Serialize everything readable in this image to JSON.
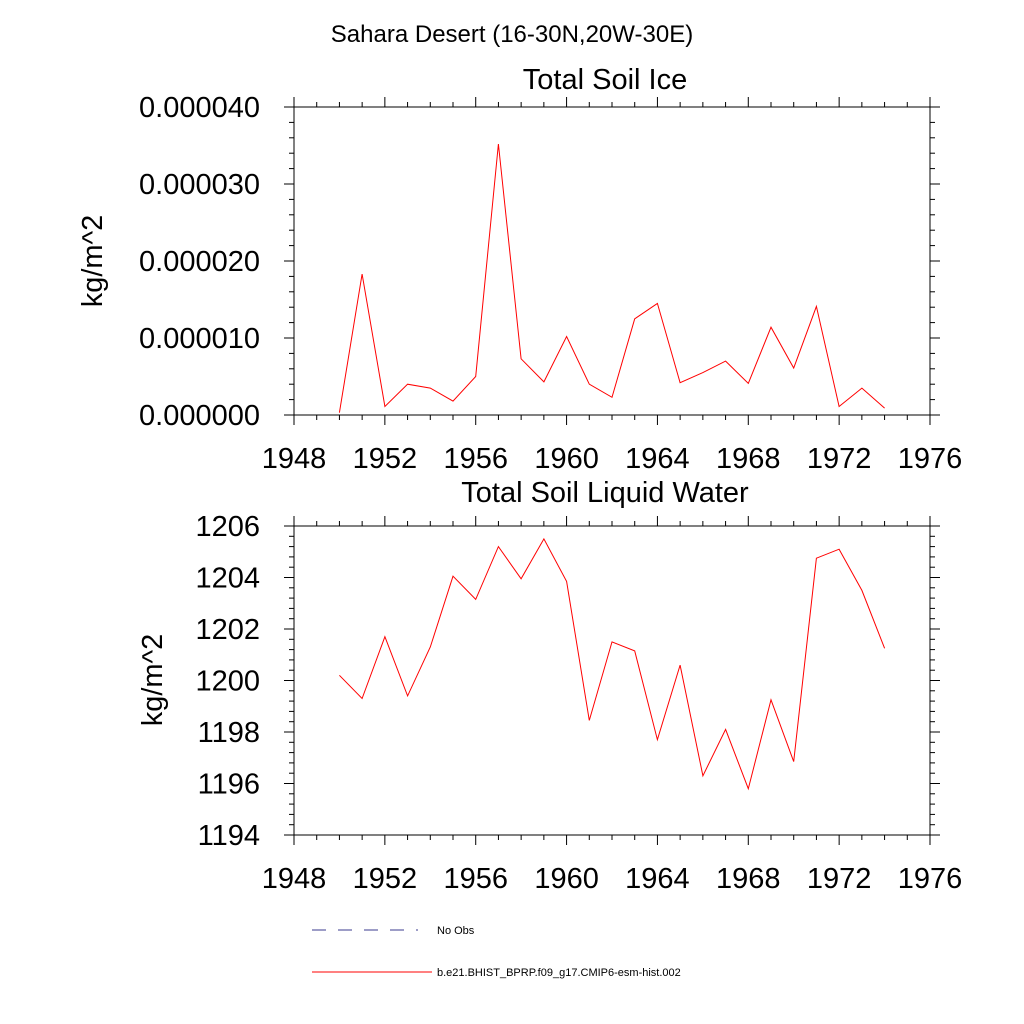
{
  "figure": {
    "suptitle": "Sahara Desert (16-30N,20W-30E)"
  },
  "colors": {
    "model_line": "#ff0000",
    "obs_line": "#3b3b8f",
    "axes": "#000000"
  },
  "legend": {
    "placement": "bottom-left",
    "entries": [
      {
        "label": "No Obs",
        "style": "dashed"
      },
      {
        "label": "b.e21.BHIST_BPRP.f09_g17.CMIP6-esm-hist.002",
        "style": "solid"
      }
    ]
  },
  "chart_data": [
    {
      "type": "line",
      "title": "Total Soil Ice",
      "xlabel": "",
      "ylabel": "kg/m^2",
      "xlim": [
        1948,
        1976
      ],
      "ylim": [
        0,
        4e-05
      ],
      "grid": false,
      "x_ticks": [
        1948,
        1952,
        1956,
        1960,
        1964,
        1968,
        1972,
        1976
      ],
      "x_tick_labels": [
        "1948",
        "1952",
        "1956",
        "1960",
        "1964",
        "1968",
        "1972",
        "1976"
      ],
      "y_ticks": [
        0,
        1e-05,
        2e-05,
        3e-05,
        4e-05
      ],
      "y_tick_labels": [
        "0.000000",
        "0.000010",
        "0.000020",
        "0.000030",
        "0.000040"
      ],
      "series": [
        {
          "name": "b.e21.BHIST_BPRP.f09_g17.CMIP6-esm-hist.002",
          "x": [
            1950,
            1951,
            1952,
            1953,
            1954,
            1955,
            1956,
            1957,
            1958,
            1959,
            1960,
            1961,
            1962,
            1963,
            1964,
            1965,
            1966,
            1967,
            1968,
            1969,
            1970,
            1971,
            1972,
            1973,
            1974
          ],
          "values": [
            3e-07,
            1.83e-05,
            1.1e-06,
            4e-06,
            3.5e-06,
            1.8e-06,
            5e-06,
            3.52e-05,
            7.3e-06,
            4.3e-06,
            1.02e-05,
            4e-06,
            2.3e-06,
            1.25e-05,
            1.45e-05,
            4.2e-06,
            5.5e-06,
            7e-06,
            4.1e-06,
            1.14e-05,
            6.1e-06,
            1.41e-05,
            1.1e-06,
            3.5e-06,
            9e-07
          ]
        }
      ]
    },
    {
      "type": "line",
      "title": "Total Soil Liquid Water",
      "xlabel": "",
      "ylabel": "kg/m^2",
      "xlim": [
        1948,
        1976
      ],
      "ylim": [
        1194,
        1206
      ],
      "grid": false,
      "x_ticks": [
        1948,
        1952,
        1956,
        1960,
        1964,
        1968,
        1972,
        1976
      ],
      "x_tick_labels": [
        "1948",
        "1952",
        "1956",
        "1960",
        "1964",
        "1968",
        "1972",
        "1976"
      ],
      "y_ticks": [
        1194,
        1196,
        1198,
        1200,
        1202,
        1204,
        1206
      ],
      "y_tick_labels": [
        "1194",
        "1196",
        "1198",
        "1200",
        "1202",
        "1204",
        "1206"
      ],
      "series": [
        {
          "name": "b.e21.BHIST_BPRP.f09_g17.CMIP6-esm-hist.002",
          "x": [
            1950,
            1951,
            1952,
            1953,
            1954,
            1955,
            1956,
            1957,
            1958,
            1959,
            1960,
            1961,
            1962,
            1963,
            1964,
            1965,
            1966,
            1967,
            1968,
            1969,
            1970,
            1971,
            1972,
            1973,
            1974
          ],
          "values": [
            1200.2,
            1199.3,
            1201.7,
            1199.4,
            1201.3,
            1204.05,
            1203.15,
            1205.2,
            1203.95,
            1205.5,
            1203.85,
            1198.45,
            1201.5,
            1201.15,
            1197.7,
            1200.6,
            1196.3,
            1198.1,
            1195.8,
            1199.25,
            1196.85,
            1204.75,
            1205.1,
            1203.5,
            1201.25
          ]
        }
      ]
    }
  ]
}
